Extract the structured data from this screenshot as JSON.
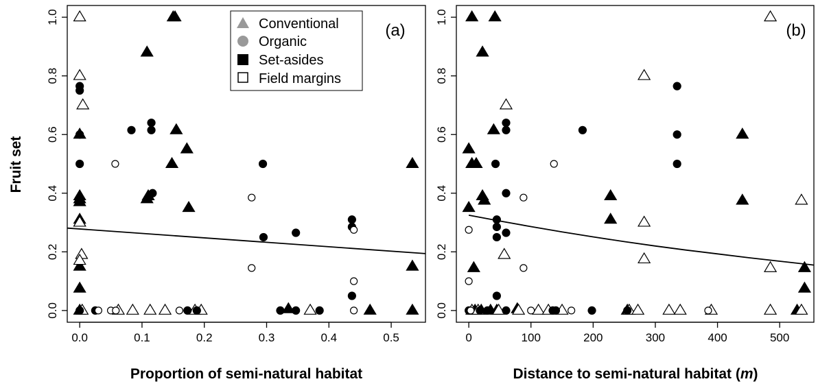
{
  "chart_data": [
    {
      "type": "scatter",
      "panel_label": "(a)",
      "xlabel": "Proportion of semi-natural habitat",
      "ylabel": "Fruit set",
      "xlim": [
        -0.02,
        0.555
      ],
      "ylim": [
        -0.04,
        1.04
      ],
      "x_ticks": [
        "0.0",
        "0.1",
        "0.2",
        "0.3",
        "0.4",
        "0.5"
      ],
      "x_tick_values": [
        0,
        0.1,
        0.2,
        0.3,
        0.4,
        0.5
      ],
      "y_ticks": [
        "0.0",
        "0.2",
        "0.4",
        "0.6",
        "0.8",
        "1.0"
      ],
      "y_tick_values": [
        0,
        0.2,
        0.4,
        0.6,
        0.8,
        1.0
      ],
      "grid": false,
      "legend": {
        "placement": "top-center",
        "entries": [
          {
            "label": "Conventional",
            "marker": "triangle",
            "color": "#999999"
          },
          {
            "label": "Organic",
            "marker": "circle",
            "color": "#999999"
          },
          {
            "label": "Set-asides",
            "marker": "square-filled",
            "color": "#000000"
          },
          {
            "label": "Field margins",
            "marker": "square-open",
            "color": "#000000"
          }
        ]
      },
      "fit_line": {
        "x": [
          -0.02,
          0.555
        ],
        "y": [
          0.281,
          0.194
        ]
      },
      "series": [
        {
          "marker": "triangle",
          "fill": "filled",
          "points": [
            [
              0,
              0.6
            ],
            [
              0,
              0.39
            ],
            [
              0,
              0.38
            ],
            [
              0,
              0.37
            ],
            [
              0,
              0.31
            ],
            [
              0,
              0.3
            ],
            [
              0,
              0.15
            ],
            [
              0,
              0.075
            ],
            [
              0,
              0.0
            ],
            [
              0.108,
              0.88
            ],
            [
              0.108,
              0.38
            ],
            [
              0.11,
              0.39
            ],
            [
              0.148,
              0.5
            ],
            [
              0.15,
              1.0
            ],
            [
              0.153,
              1.0
            ],
            [
              0.155,
              0.615
            ],
            [
              0.172,
              0.55
            ],
            [
              0.175,
              0.35
            ],
            [
              0.335,
              0.005
            ],
            [
              0.466,
              0.0
            ],
            [
              0.534,
              0.5
            ],
            [
              0.534,
              0.15
            ],
            [
              0.534,
              0.0
            ]
          ]
        },
        {
          "marker": "triangle",
          "fill": "open",
          "points": [
            [
              0,
              1.0
            ],
            [
              0,
              0.8
            ],
            [
              0,
              0.3
            ],
            [
              0.005,
              0.7
            ],
            [
              0.003,
              0.19
            ],
            [
              0,
              0.17
            ],
            [
              0.004,
              0.0
            ],
            [
              0.062,
              0.0
            ],
            [
              0.085,
              0.0
            ],
            [
              0.113,
              0.0
            ],
            [
              0.137,
              0.0
            ],
            [
              0.185,
              0.0
            ],
            [
              0.195,
              0.0
            ],
            [
              0.37,
              0.0
            ]
          ]
        },
        {
          "marker": "circle",
          "fill": "filled",
          "points": [
            [
              0,
              0.765
            ],
            [
              0,
              0.75
            ],
            [
              0.0,
              0.6
            ],
            [
              0.0,
              0.5
            ],
            [
              0.0,
              0.0
            ],
            [
              0.025,
              0.0
            ],
            [
              0.083,
              0.615
            ],
            [
              0.115,
              0.64
            ],
            [
              0.115,
              0.615
            ],
            [
              0.117,
              0.4
            ],
            [
              0.173,
              0.0
            ],
            [
              0.188,
              0.0
            ],
            [
              0.294,
              0.5
            ],
            [
              0.295,
              0.25
            ],
            [
              0.322,
              0.0
            ],
            [
              0.347,
              0.265
            ],
            [
              0.347,
              0.0
            ],
            [
              0.385,
              0.0
            ],
            [
              0.437,
              0.31
            ],
            [
              0.437,
              0.285
            ],
            [
              0.437,
              0.05
            ]
          ]
        },
        {
          "marker": "circle",
          "fill": "open",
          "points": [
            [
              0.057,
              0.5
            ],
            [
              0.03,
              0.0
            ],
            [
              0.05,
              0.0
            ],
            [
              0.058,
              0.0
            ],
            [
              0.16,
              0.0
            ],
            [
              0.276,
              0.385
            ],
            [
              0.276,
              0.145
            ],
            [
              0.44,
              0.275
            ],
            [
              0.44,
              0.1
            ],
            [
              0.44,
              0.0
            ]
          ]
        }
      ]
    },
    {
      "type": "scatter",
      "panel_label": "(b)",
      "xlabel_main": "Distance to semi-natural habitat (",
      "xlabel_unit": "m",
      "xlabel_close": ")",
      "xlim": [
        -20,
        555
      ],
      "ylim": [
        -0.04,
        1.04
      ],
      "x_ticks": [
        "0",
        "100",
        "200",
        "300",
        "400",
        "500"
      ],
      "x_tick_values": [
        0,
        100,
        200,
        300,
        400,
        500
      ],
      "y_ticks": [
        "0.0",
        "0.2",
        "0.4",
        "0.6",
        "0.8",
        "1.0"
      ],
      "y_tick_values": [
        0,
        0.2,
        0.4,
        0.6,
        0.8,
        1.0
      ],
      "grid": false,
      "fit_line": {
        "x": [
          0,
          50,
          100,
          150,
          200,
          250,
          300,
          350,
          400,
          450,
          500,
          555
        ],
        "y": [
          0.325,
          0.305,
          0.286,
          0.268,
          0.251,
          0.235,
          0.22,
          0.206,
          0.193,
          0.18,
          0.168,
          0.155
        ]
      },
      "series": [
        {
          "marker": "triangle",
          "fill": "filled",
          "points": [
            [
              5,
              1.0
            ],
            [
              42,
              1.0
            ],
            [
              22,
              0.88
            ],
            [
              0,
              0.55
            ],
            [
              5,
              0.5
            ],
            [
              12,
              0.5
            ],
            [
              0,
              0.35
            ],
            [
              22,
              0.39
            ],
            [
              25,
              0.375
            ],
            [
              40,
              0.615
            ],
            [
              8,
              0.145
            ],
            [
              228,
              0.39
            ],
            [
              228,
              0.31
            ],
            [
              440,
              0.6
            ],
            [
              440,
              0.375
            ],
            [
              540,
              0.145
            ],
            [
              540,
              0.075
            ],
            [
              528,
              0.0
            ],
            [
              10,
              0.0
            ],
            [
              20,
              0.0
            ],
            [
              35,
              0.0
            ],
            [
              45,
              0.0
            ],
            [
              78,
              0.005
            ],
            [
              255,
              0.0
            ]
          ]
        },
        {
          "marker": "triangle",
          "fill": "open",
          "points": [
            [
              282,
              0.8
            ],
            [
              60,
              0.7
            ],
            [
              57,
              0.19
            ],
            [
              282,
              0.3
            ],
            [
              282,
              0.175
            ],
            [
              485,
              1.0
            ],
            [
              535,
              0.375
            ],
            [
              485,
              0.145
            ],
            [
              5,
              0.0
            ],
            [
              15,
              0.0
            ],
            [
              48,
              0.0
            ],
            [
              80,
              0.0
            ],
            [
              112,
              0.0
            ],
            [
              128,
              0.0
            ],
            [
              150,
              0.0
            ],
            [
              258,
              0.0
            ],
            [
              272,
              0.0
            ],
            [
              322,
              0.0
            ],
            [
              340,
              0.0
            ],
            [
              390,
              0.0
            ],
            [
              485,
              0.0
            ],
            [
              535,
              0.0
            ]
          ]
        },
        {
          "marker": "circle",
          "fill": "filled",
          "points": [
            [
              335,
              0.765
            ],
            [
              335,
              0.6
            ],
            [
              335,
              0.5
            ],
            [
              60,
              0.64
            ],
            [
              60,
              0.615
            ],
            [
              183,
              0.615
            ],
            [
              43,
              0.5
            ],
            [
              60,
              0.4
            ],
            [
              45,
              0.31
            ],
            [
              45,
              0.285
            ],
            [
              45,
              0.25
            ],
            [
              60,
              0.265
            ],
            [
              45,
              0.05
            ],
            [
              0,
              0.0
            ],
            [
              18,
              0.0
            ],
            [
              30,
              0.0
            ],
            [
              60,
              0.0
            ],
            [
              135,
              0.0
            ],
            [
              140,
              0.0
            ],
            [
              198,
              0.0
            ],
            [
              255,
              0.0
            ]
          ]
        },
        {
          "marker": "circle",
          "fill": "open",
          "points": [
            [
              137,
              0.5
            ],
            [
              88,
              0.385
            ],
            [
              88,
              0.145
            ],
            [
              0,
              0.275
            ],
            [
              0,
              0.1
            ],
            [
              3,
              0.0
            ],
            [
              100,
              0.0
            ],
            [
              165,
              0.0
            ],
            [
              385,
              0.0
            ]
          ]
        }
      ]
    }
  ]
}
